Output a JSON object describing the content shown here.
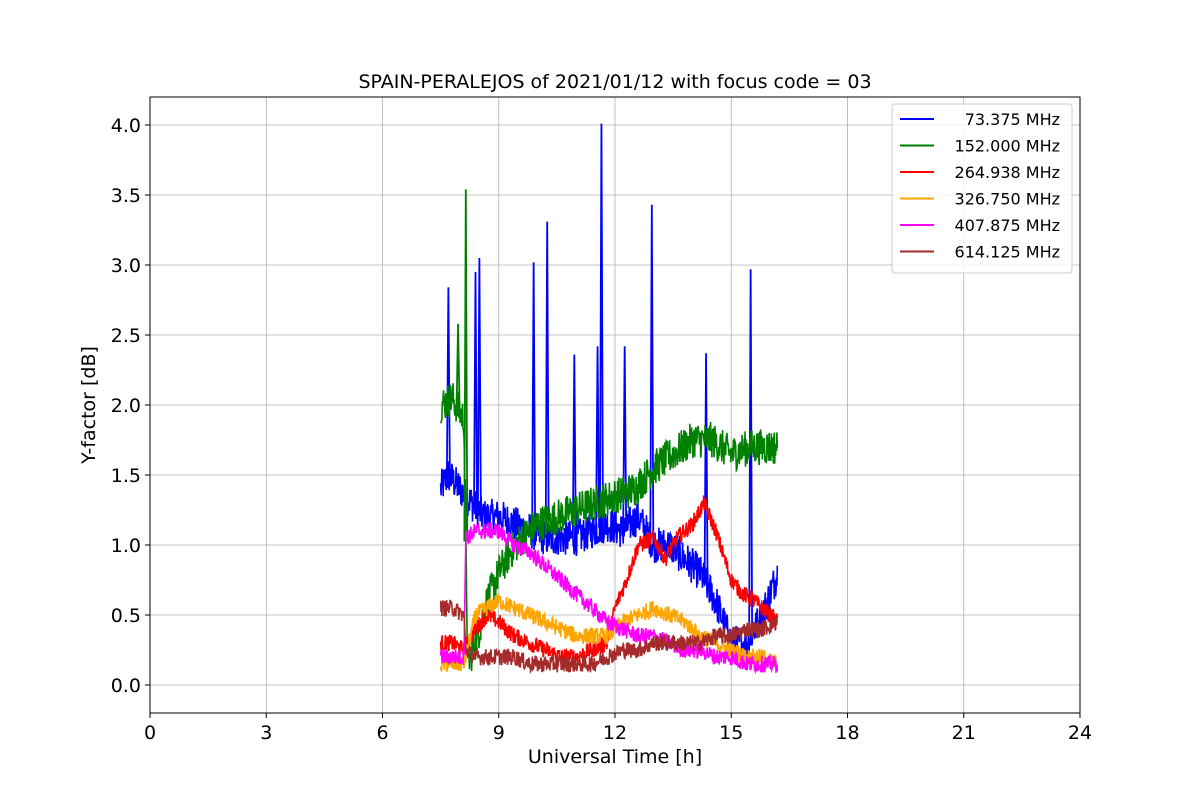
{
  "chart_data": {
    "type": "line",
    "title": "SPAIN-PERALEJOS of 2021/01/12 with focus code = 03",
    "xlabel": "Universal Time [h]",
    "ylabel": "Y-factor [dB]",
    "xlim": [
      0,
      24
    ],
    "ylim": [
      -0.2,
      4.2
    ],
    "xticks": [
      "0",
      "3",
      "6",
      "9",
      "12",
      "15",
      "18",
      "21",
      "24"
    ],
    "yticks": [
      "0.0",
      "0.5",
      "1.0",
      "1.5",
      "2.0",
      "2.5",
      "3.0",
      "3.5",
      "4.0"
    ],
    "grid": true,
    "legend_position": "top-right",
    "series": [
      {
        "name": "73.375 MHz",
        "color": "#0000ff",
        "x": [
          7.5,
          7.7,
          8.0,
          8.3,
          8.6,
          9.0,
          9.4,
          9.8,
          10.2,
          10.6,
          11.0,
          11.4,
          11.8,
          12.2,
          12.6,
          13.0,
          13.4,
          13.8,
          14.2,
          14.6,
          15.0,
          15.4,
          15.8,
          16.2
        ],
        "values": [
          1.4,
          1.5,
          1.4,
          1.3,
          1.2,
          1.2,
          1.15,
          1.1,
          1.05,
          1.05,
          1.05,
          1.1,
          1.15,
          1.1,
          1.2,
          1.0,
          1.0,
          0.9,
          0.8,
          0.6,
          0.3,
          0.3,
          0.5,
          0.8
        ],
        "spikes": [
          {
            "x": 7.7,
            "y": 2.84
          },
          {
            "x": 8.4,
            "y": 2.95
          },
          {
            "x": 8.5,
            "y": 3.05
          },
          {
            "x": 9.9,
            "y": 3.02
          },
          {
            "x": 10.25,
            "y": 3.31
          },
          {
            "x": 10.95,
            "y": 2.36
          },
          {
            "x": 11.55,
            "y": 2.42
          },
          {
            "x": 11.65,
            "y": 4.01
          },
          {
            "x": 12.25,
            "y": 2.42
          },
          {
            "x": 12.95,
            "y": 3.43
          },
          {
            "x": 14.35,
            "y": 2.37
          },
          {
            "x": 15.5,
            "y": 2.97
          }
        ]
      },
      {
        "name": "152.000 MHz",
        "color": "#008000",
        "x": [
          7.5,
          7.8,
          8.1,
          8.2,
          8.4,
          8.7,
          9.0,
          9.3,
          9.6,
          10.0,
          10.5,
          11.0,
          11.5,
          12.0,
          12.5,
          13.0,
          13.5,
          14.0,
          14.5,
          15.0,
          15.5,
          16.0,
          16.2
        ],
        "values": [
          2.0,
          2.05,
          1.9,
          0.15,
          0.3,
          0.6,
          0.8,
          0.95,
          1.05,
          1.15,
          1.2,
          1.25,
          1.3,
          1.35,
          1.4,
          1.55,
          1.65,
          1.75,
          1.75,
          1.65,
          1.7,
          1.7,
          1.7
        ],
        "spikes": [
          {
            "x": 8.15,
            "y": 3.54
          },
          {
            "x": 7.95,
            "y": 2.58
          }
        ]
      },
      {
        "name": "264.938 MHz",
        "color": "#ff0000",
        "x": [
          7.5,
          7.8,
          8.1,
          8.4,
          8.7,
          9.0,
          9.4,
          9.8,
          10.2,
          10.6,
          11.0,
          11.4,
          11.8,
          12.0,
          12.3,
          12.6,
          13.0,
          13.3,
          13.6,
          14.0,
          14.3,
          14.6,
          15.0,
          15.3,
          15.6,
          16.0,
          16.2
        ],
        "values": [
          0.3,
          0.3,
          0.25,
          0.4,
          0.5,
          0.45,
          0.35,
          0.3,
          0.25,
          0.2,
          0.2,
          0.25,
          0.3,
          0.55,
          0.75,
          1.0,
          1.05,
          0.9,
          1.05,
          1.15,
          1.3,
          1.1,
          0.75,
          0.65,
          0.6,
          0.5,
          0.45
        ]
      },
      {
        "name": "326.750 MHz",
        "color": "#ffa500",
        "x": [
          7.5,
          7.8,
          8.1,
          8.4,
          8.7,
          9.0,
          9.4,
          9.8,
          10.2,
          10.6,
          11.0,
          11.4,
          11.8,
          12.2,
          12.6,
          13.0,
          13.4,
          13.8,
          14.2,
          14.6,
          15.0,
          15.4,
          15.8,
          16.2
        ],
        "values": [
          0.15,
          0.15,
          0.15,
          0.5,
          0.55,
          0.6,
          0.55,
          0.5,
          0.45,
          0.4,
          0.35,
          0.35,
          0.35,
          0.45,
          0.5,
          0.55,
          0.5,
          0.45,
          0.35,
          0.3,
          0.25,
          0.2,
          0.2,
          0.15
        ]
      },
      {
        "name": "407.875 MHz",
        "color": "#ff00ff",
        "x": [
          7.5,
          7.8,
          8.1,
          8.15,
          8.4,
          8.7,
          9.0,
          9.4,
          9.8,
          10.2,
          10.6,
          11.0,
          11.4,
          11.8,
          12.2,
          12.6,
          13.0,
          13.4,
          13.8,
          14.2,
          14.6,
          15.0,
          15.4,
          15.8,
          16.2
        ],
        "values": [
          0.2,
          0.2,
          0.2,
          1.05,
          1.1,
          1.1,
          1.1,
          1.0,
          0.95,
          0.85,
          0.75,
          0.65,
          0.55,
          0.45,
          0.4,
          0.35,
          0.35,
          0.3,
          0.25,
          0.25,
          0.2,
          0.2,
          0.15,
          0.15,
          0.15
        ]
      },
      {
        "name": "614.125 MHz",
        "color": "#a52a2a",
        "x": [
          7.5,
          7.8,
          8.1,
          8.15,
          8.4,
          8.7,
          9.0,
          9.4,
          9.8,
          10.2,
          10.6,
          11.0,
          11.4,
          11.8,
          12.2,
          12.6,
          13.0,
          13.4,
          13.8,
          14.2,
          14.6,
          15.0,
          15.4,
          15.8,
          16.2
        ],
        "values": [
          0.55,
          0.55,
          0.5,
          0.25,
          0.2,
          0.2,
          0.2,
          0.2,
          0.15,
          0.15,
          0.15,
          0.15,
          0.15,
          0.2,
          0.25,
          0.25,
          0.3,
          0.3,
          0.3,
          0.3,
          0.35,
          0.35,
          0.4,
          0.4,
          0.45
        ]
      }
    ]
  }
}
